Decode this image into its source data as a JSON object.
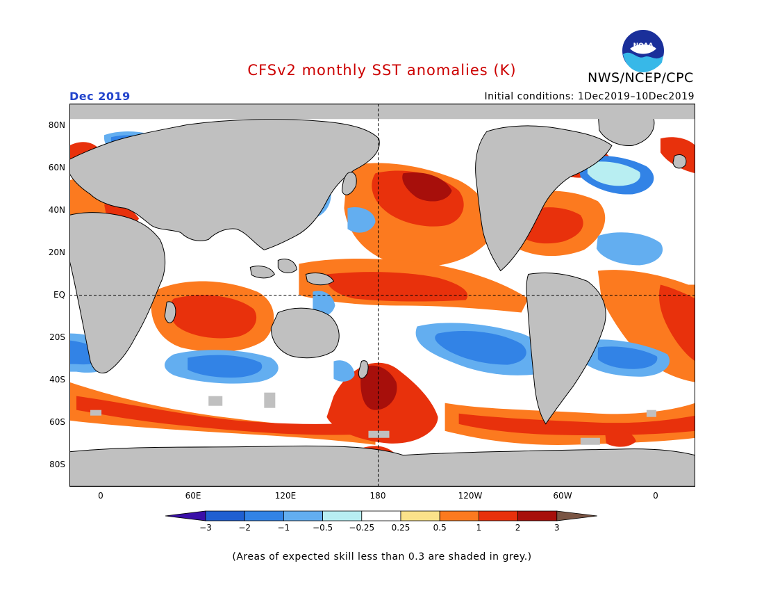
{
  "title": "CFSv2 monthly SST anomalies (K)",
  "organization": "NWS/NCEP/CPC",
  "logo_text": "NOAA",
  "month_label": "Dec 2019",
  "initial_conditions": "Initial conditions: 1Dec2019–10Dec2019",
  "footnote": "(Areas of expected skill less than 0.3 are shaded in grey.)",
  "lat_labels": [
    "80N",
    "60N",
    "40N",
    "20N",
    "EQ",
    "20S",
    "40S",
    "60S",
    "80S"
  ],
  "lon_labels": [
    "0",
    "60E",
    "120E",
    "180",
    "120W",
    "60W",
    "0"
  ],
  "colorbar": {
    "labels": [
      "−3",
      "−2",
      "−1",
      "−0.5",
      "−0.25",
      "0.25",
      "0.5",
      "1",
      "2",
      "3"
    ],
    "colors": [
      "#3a0fa8",
      "#1f5fd1",
      "#3283e6",
      "#63aef0",
      "#b8eef2",
      "#ffffff",
      "#fbe28a",
      "#fc7a1f",
      "#e8310c",
      "#a70f0b",
      "#7a5544"
    ]
  },
  "colors": {
    "title": "#cc0000",
    "month": "#2244cc",
    "land": "#c0c0c0",
    "skill_grey": "#c0c0c0"
  }
}
